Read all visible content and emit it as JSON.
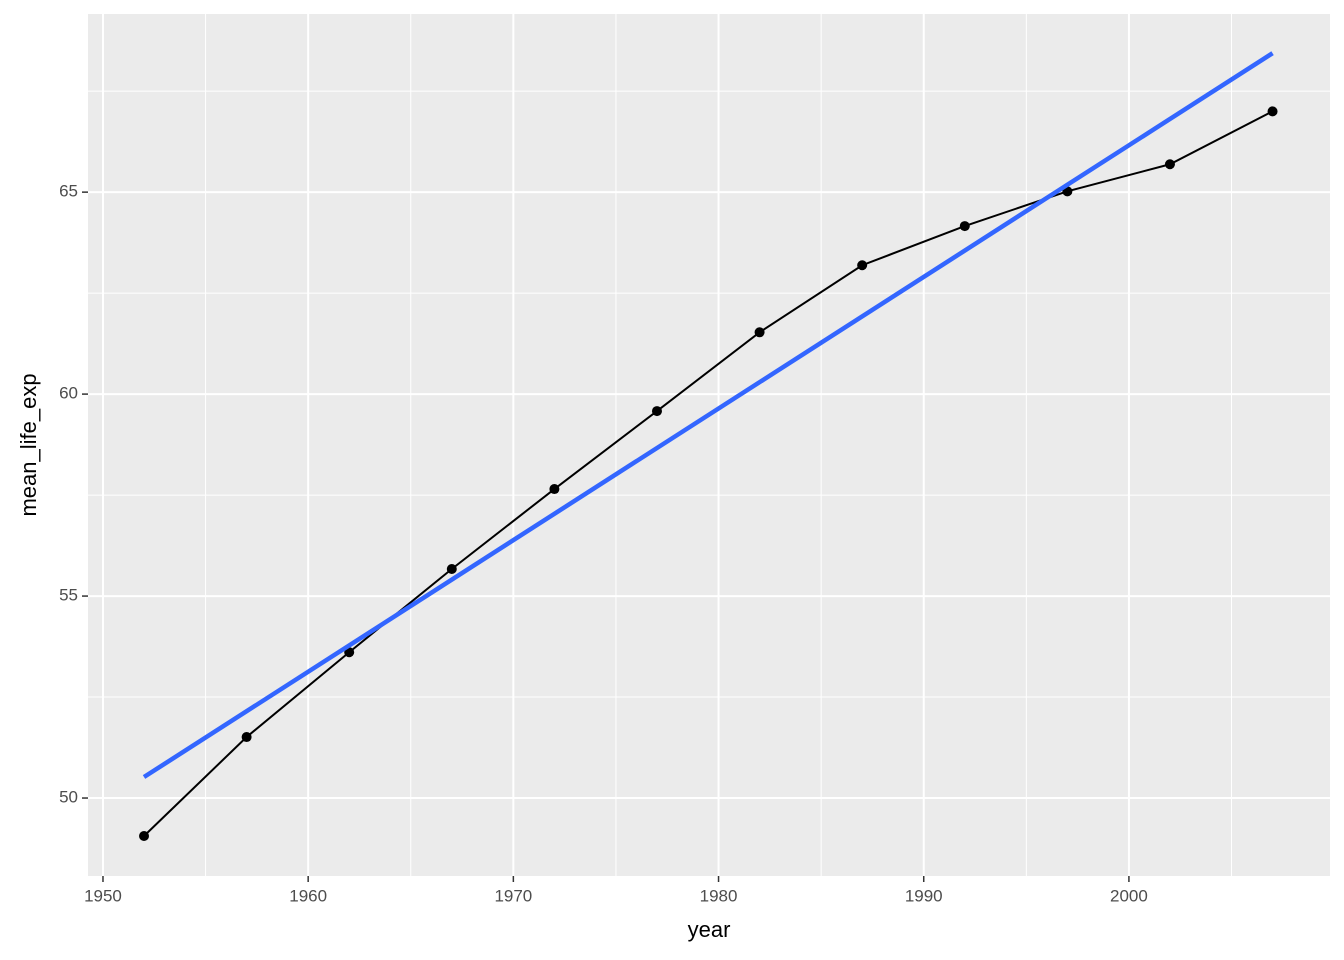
{
  "chart_data": {
    "type": "line",
    "xlabel": "year",
    "ylabel": "mean_life_exp",
    "series": [
      {
        "x": [
          1952,
          1957,
          1962,
          1967,
          1972,
          1977,
          1982,
          1987,
          1992,
          1997,
          2002,
          2007
        ],
        "values": [
          49.06,
          51.51,
          53.61,
          55.67,
          57.65,
          59.58,
          61.53,
          63.19,
          64.16,
          65.02,
          65.69,
          67.0
        ],
        "color": "#000000",
        "markers": true
      },
      {
        "x": [
          1952,
          2007
        ],
        "values": [
          50.52,
          68.44
        ],
        "color": "#3366ff",
        "markers": false
      }
    ],
    "xlim": [
      1949.27,
      2009.8
    ],
    "ylim": [
      48.07,
      69.41
    ],
    "xticks": [
      1950,
      1960,
      1970,
      1980,
      1990,
      2000
    ],
    "yticks": [
      50,
      55,
      60,
      65
    ],
    "xminorticks": [
      1955,
      1965,
      1975,
      1985,
      1995,
      2005
    ],
    "yminorticks": [
      52.5,
      57.5,
      62.5,
      67.5
    ],
    "grid": true,
    "panel_color": "#ebebeb"
  }
}
